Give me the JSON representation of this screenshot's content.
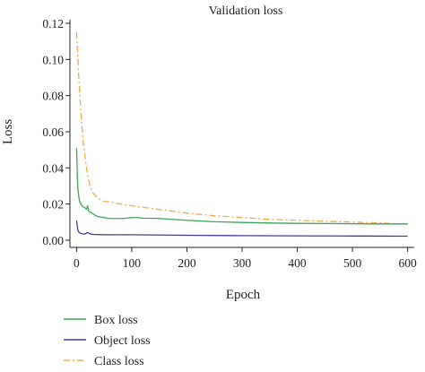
{
  "chart_data": {
    "type": "line",
    "title": "Validation loss",
    "xlabel": "Epoch",
    "ylabel": "Loss",
    "xlim": [
      -12,
      612
    ],
    "ylim": [
      -0.004,
      0.122
    ],
    "xticks": [
      0,
      100,
      200,
      300,
      400,
      500,
      600
    ],
    "yticks": [
      0.0,
      0.02,
      0.04,
      0.06,
      0.08,
      0.1,
      0.12
    ],
    "ytick_labels": [
      "0.00",
      "0.02",
      "0.04",
      "0.06",
      "0.08",
      "0.10",
      "0.12"
    ],
    "grid": false,
    "legend_position": "bottom-left, below plot",
    "series": [
      {
        "name": "Box loss",
        "color": "#3aa655",
        "dash": "solid",
        "x": [
          0,
          2,
          4,
          6,
          8,
          10,
          12,
          15,
          18,
          20,
          22,
          25,
          30,
          35,
          40,
          50,
          60,
          70,
          80,
          90,
          100,
          110,
          120,
          150,
          200,
          250,
          300,
          350,
          400,
          450,
          500,
          550,
          600
        ],
        "y": [
          0.051,
          0.03,
          0.024,
          0.021,
          0.02,
          0.019,
          0.0185,
          0.018,
          0.017,
          0.019,
          0.016,
          0.0155,
          0.0145,
          0.0135,
          0.013,
          0.0125,
          0.012,
          0.012,
          0.012,
          0.0122,
          0.0125,
          0.0125,
          0.0122,
          0.012,
          0.011,
          0.0102,
          0.0098,
          0.0095,
          0.0093,
          0.0092,
          0.0091,
          0.009,
          0.009
        ]
      },
      {
        "name": "Object loss",
        "color": "#3d3d99",
        "dash": "solid",
        "x": [
          0,
          2,
          4,
          6,
          8,
          10,
          15,
          20,
          25,
          30,
          40,
          50,
          100,
          200,
          300,
          400,
          500,
          600
        ],
        "y": [
          0.011,
          0.006,
          0.0045,
          0.004,
          0.0038,
          0.0035,
          0.0034,
          0.0042,
          0.0034,
          0.0032,
          0.0031,
          0.003,
          0.003,
          0.0027,
          0.0025,
          0.0024,
          0.0023,
          0.0022
        ]
      },
      {
        "name": "Class loss",
        "color": "#f2a840",
        "dash": "dashdot",
        "x": [
          0,
          2,
          4,
          6,
          8,
          10,
          12,
          15,
          18,
          20,
          25,
          30,
          40,
          50,
          60,
          80,
          100,
          150,
          200,
          250,
          300,
          350,
          400,
          450,
          500,
          550,
          600
        ],
        "y": [
          0.115,
          0.103,
          0.09,
          0.08,
          0.07,
          0.062,
          0.055,
          0.047,
          0.04,
          0.036,
          0.029,
          0.026,
          0.023,
          0.0215,
          0.0212,
          0.02,
          0.019,
          0.017,
          0.015,
          0.0135,
          0.0125,
          0.0115,
          0.011,
          0.0105,
          0.01,
          0.0095,
          0.0088
        ]
      }
    ]
  }
}
